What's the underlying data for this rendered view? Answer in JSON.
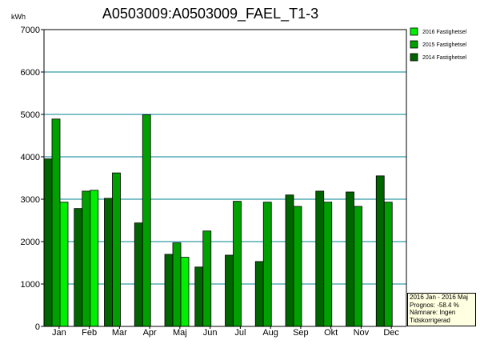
{
  "chart_data": {
    "type": "bar",
    "title": "A0503009:A0503009_FAEL_T1-3",
    "ylabel": "kWh",
    "xlabel": "",
    "ylim": [
      0,
      7000
    ],
    "yticks": [
      0,
      1000,
      2000,
      3000,
      4000,
      5000,
      6000,
      7000
    ],
    "grid": true,
    "legend_position": "right-top",
    "categories": [
      "Jan",
      "Feb",
      "Mar",
      "Apr",
      "Maj",
      "Jun",
      "Jul",
      "Aug",
      "Sep",
      "Okt",
      "Nov",
      "Dec"
    ],
    "series": [
      {
        "name": "2014 Fastighetsel",
        "color": "#006400",
        "values": [
          3950,
          2780,
          3020,
          2440,
          1700,
          1400,
          1680,
          1530,
          3100,
          3190,
          3170,
          3550
        ]
      },
      {
        "name": "2015 Fastighetsel",
        "color": "#00a000",
        "values": [
          4890,
          3190,
          3620,
          4990,
          1970,
          2250,
          2950,
          2930,
          2830,
          2930,
          2830,
          2930
        ]
      },
      {
        "name": "2016 Fastighetsel",
        "color": "#00ee00",
        "values": [
          2930,
          3210,
          null,
          null,
          1630,
          null,
          null,
          null,
          null,
          null,
          null,
          null
        ]
      }
    ],
    "legend_order": [
      "2016 Fastighetsel",
      "2015 Fastighetsel",
      "2014 Fastighetsel"
    ]
  },
  "info_box": {
    "lines": [
      "2016 Jan - 2016 Maj",
      "Prognos: -58.4 %",
      "Nämnare: Ingen",
      "Tidskorrigerad"
    ]
  },
  "colors": {
    "gridline": "#00838f",
    "background": "#ffffff"
  }
}
